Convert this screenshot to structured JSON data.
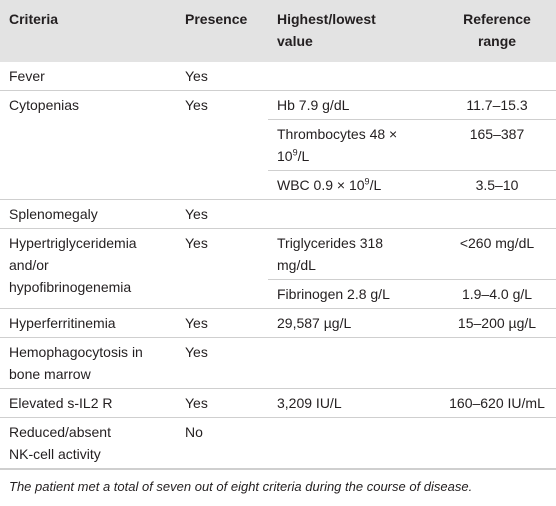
{
  "table": {
    "header": [
      [
        "Criteria"
      ],
      [
        "Presence"
      ],
      [
        "Highest/lowest",
        "value"
      ],
      [
        "Reference",
        "range"
      ]
    ],
    "rows": [
      {
        "criteria": [
          "Fever"
        ],
        "presence": [
          "Yes"
        ]
      },
      {
        "criteria": [
          "Cytopenias"
        ],
        "presence": [
          "Yes"
        ],
        "values": [
          [
            [
              "Hb 7.9 g/dL"
            ],
            [
              "11.7–15.3"
            ]
          ],
          [
            [
              "Thrombocytes 48 ×",
              [
                "10",
                "9",
                "/L"
              ]
            ],
            [
              "165–387"
            ]
          ],
          [
            [
              [
                "WBC 0.9 × 10",
                "9",
                "/L"
              ]
            ],
            [
              "3.5–10"
            ]
          ]
        ]
      },
      {
        "criteria": [
          "Splenomegaly"
        ],
        "presence": [
          "Yes"
        ]
      },
      {
        "criteria": [
          "Hypertriglyceridemia",
          "and/or",
          "hypofibrinogenemia"
        ],
        "presence": [
          "Yes"
        ],
        "values": [
          [
            [
              "Triglycerides 318",
              "mg/dL"
            ],
            [
              "<260 mg/dL"
            ]
          ],
          [
            [
              "Fibrinogen 2.8 g/L"
            ],
            [
              "1.9–4.0 g/L"
            ]
          ]
        ]
      },
      {
        "criteria": [
          "Hyperferritinemia"
        ],
        "presence": [
          "Yes"
        ],
        "values": [
          [
            [
              "29,587 µg/L"
            ],
            [
              "15–200 µg/L"
            ]
          ]
        ]
      },
      {
        "criteria": [
          "Hemophagocytosis in",
          "bone marrow"
        ],
        "presence": [
          "Yes"
        ]
      },
      {
        "criteria": [
          "Elevated s-IL2 R"
        ],
        "presence": [
          "Yes"
        ],
        "values": [
          [
            [
              "3,209 IU/L"
            ],
            [
              "160–620 IU/mL"
            ]
          ]
        ]
      },
      {
        "criteria": [
          "Reduced/absent",
          "NK-cell activity"
        ],
        "presence": [
          "No"
        ]
      }
    ],
    "footnote": "The patient met a total of seven out of eight criteria during the course of disease."
  }
}
